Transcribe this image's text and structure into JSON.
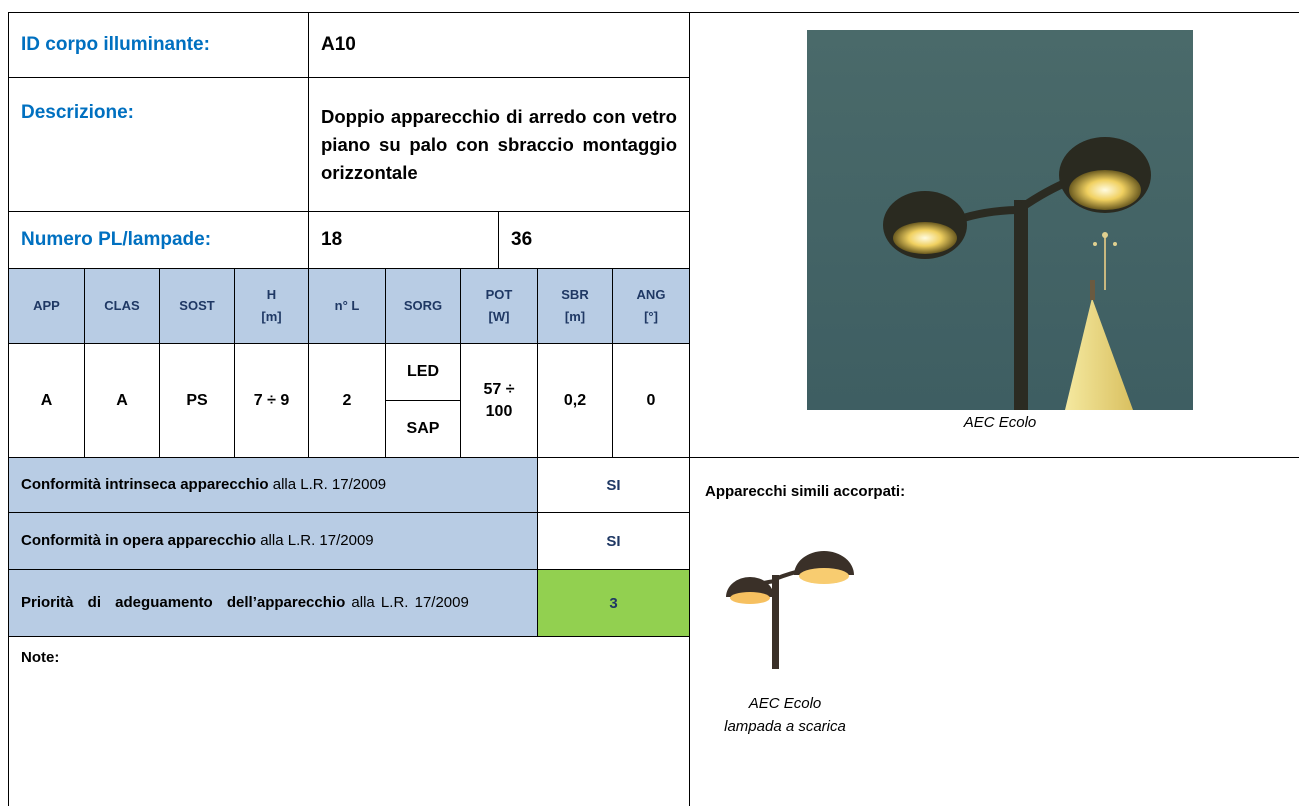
{
  "id_row": {
    "label": "ID corpo illuminante:",
    "value": "A10"
  },
  "description": {
    "label": "Descrizione:",
    "value": "Doppio apparecchio di arredo con vetro piano su palo con sbraccio montaggio orizzontale"
  },
  "lamps": {
    "label": "Numero PL/lampade:",
    "values": [
      "18",
      "36"
    ]
  },
  "specs": {
    "headers": [
      [
        "APP"
      ],
      [
        "CLAS"
      ],
      [
        "SOST"
      ],
      [
        "H",
        "[m]"
      ],
      [
        "n° L"
      ],
      [
        "SORG"
      ],
      [
        "POT",
        "[W]"
      ],
      [
        "SBR",
        "[m]"
      ],
      [
        "ANG",
        "[°]"
      ]
    ],
    "row": {
      "app": "A",
      "clas": "A",
      "sost": "PS",
      "h": "7 ÷ 9",
      "n_l": "2",
      "sorg": [
        "LED",
        "SAP"
      ],
      "pot": "57 ÷ 100",
      "sbr": "0,2",
      "ang": "0"
    }
  },
  "conformity": [
    {
      "bold": "Conformità intrinseca apparecchio",
      "rest": " alla L.R. 17/2009",
      "value": "SI"
    },
    {
      "bold": "Conformità in opera apparecchio",
      "rest": " alla L.R. 17/2009",
      "value": "SI"
    },
    {
      "bold": "Priorità di adeguamento dell’apparecchio",
      "rest": " alla L.R. 17/2009",
      "value": "3"
    }
  ],
  "note": {
    "label": "Note:"
  },
  "photo": {
    "caption": "AEC Ecolo"
  },
  "similar": {
    "title": "Apparecchi simili accorpati:",
    "caption": [
      "AEC Ecolo",
      "lampada a scarica"
    ]
  }
}
